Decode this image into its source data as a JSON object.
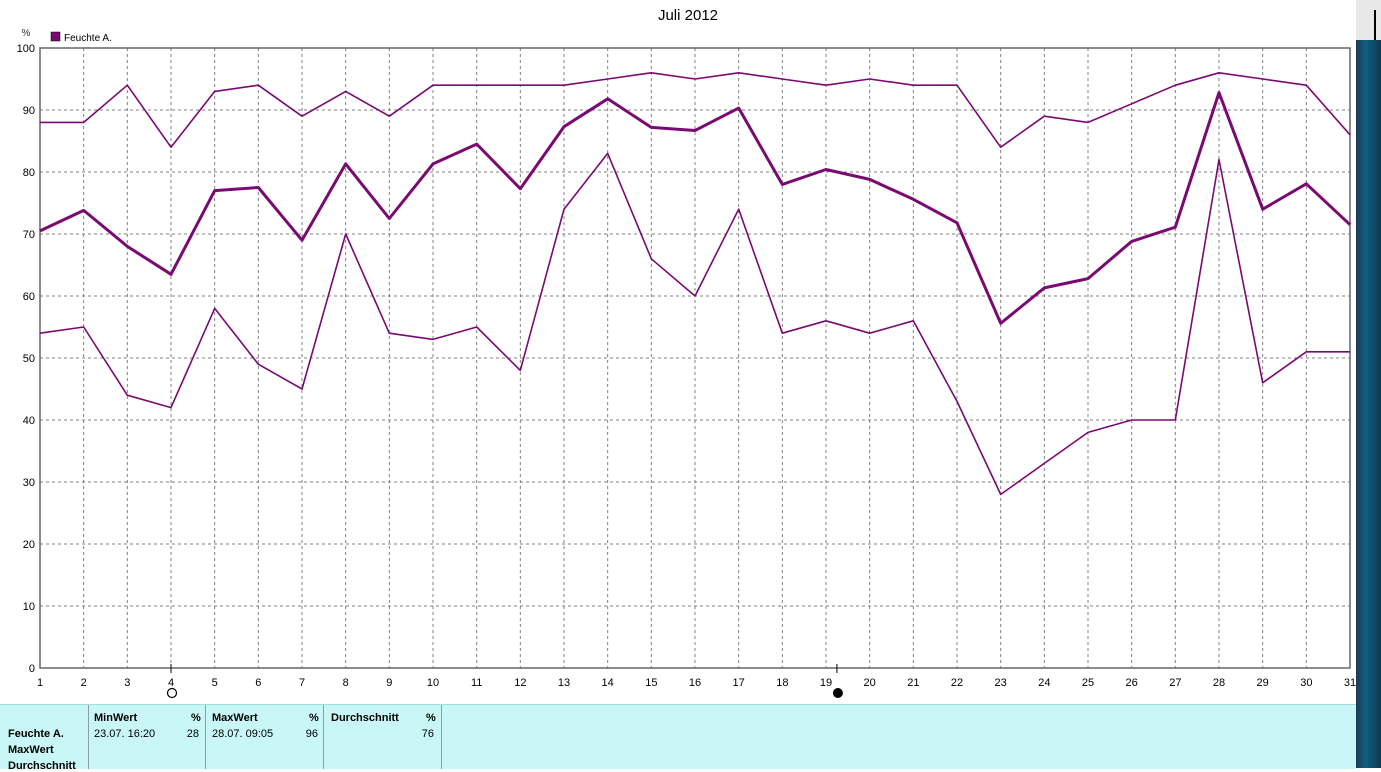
{
  "colors": {
    "series": "#7a0a72",
    "grid": "#808080",
    "axis": "#666666",
    "panel_bg": "#c9f7f7"
  },
  "chart_data": {
    "type": "line",
    "title": "Juli 2012",
    "ylabel": "%",
    "ylim": [
      0,
      100
    ],
    "yticks": [
      0,
      10,
      20,
      30,
      40,
      50,
      60,
      70,
      80,
      90,
      100
    ],
    "grid": true,
    "legend": {
      "placement": "top-left",
      "entries": [
        {
          "label": "Feuchte A.",
          "color": "#7a0a72"
        }
      ]
    },
    "x": [
      1,
      2,
      3,
      4,
      5,
      6,
      7,
      8,
      9,
      10,
      11,
      12,
      13,
      14,
      15,
      16,
      17,
      18,
      19,
      20,
      21,
      22,
      23,
      24,
      25,
      26,
      27,
      28,
      29,
      30,
      31
    ],
    "xlabels": [
      "1",
      "2",
      "3",
      "4",
      "5",
      "6",
      "7",
      "8",
      "9",
      "10",
      "11",
      "12",
      "13",
      "14",
      "15",
      "16",
      "17",
      "18",
      "19",
      "20",
      "21",
      "22",
      "23",
      "24",
      "25",
      "26",
      "27",
      "28",
      "29",
      "30",
      "31"
    ],
    "series": [
      {
        "role": "max",
        "values": [
          88,
          88,
          94,
          84,
          93,
          94,
          89,
          93,
          89,
          94,
          94,
          94,
          94,
          95,
          96,
          95,
          96,
          95,
          94,
          95,
          94,
          94,
          84,
          89,
          88,
          91,
          94,
          96,
          95,
          94,
          86
        ]
      },
      {
        "role": "avg",
        "values": [
          70.5,
          73.8,
          68,
          63.5,
          77,
          77.5,
          69,
          81.3,
          72.5,
          81.3,
          84.5,
          77.3,
          87.3,
          91.8,
          87.2,
          86.7,
          90.3,
          78,
          80.4,
          78.8,
          75.6,
          71.8,
          55.6,
          61.3,
          62.8,
          68.8,
          71.1,
          92.8,
          74,
          78.1,
          71.5
        ]
      },
      {
        "role": "min",
        "values": [
          54,
          55,
          44,
          42,
          58,
          49,
          45,
          70,
          54,
          53,
          55,
          48,
          74,
          83,
          66,
          60,
          74,
          54,
          56,
          54,
          56,
          43,
          28,
          33,
          38,
          40,
          40,
          82,
          46,
          51,
          51
        ]
      }
    ],
    "moon_markers": [
      {
        "x": 4,
        "phase": "full"
      },
      {
        "x": 19.25,
        "phase": "new"
      }
    ]
  },
  "stats": {
    "series_name": "Feuchte A.",
    "row_labels": [
      "Feuchte A.",
      "MaxWert",
      "Durchschnitt"
    ],
    "min": {
      "title": "MinWert",
      "unit": "%",
      "datetime": "23.07.  16:20",
      "value": "28"
    },
    "max": {
      "title": "MaxWert",
      "unit": "%",
      "datetime": "28.07.  09:05",
      "value": "96"
    },
    "avg": {
      "title": "Durchschnitt",
      "unit": "%",
      "value": "76"
    }
  }
}
